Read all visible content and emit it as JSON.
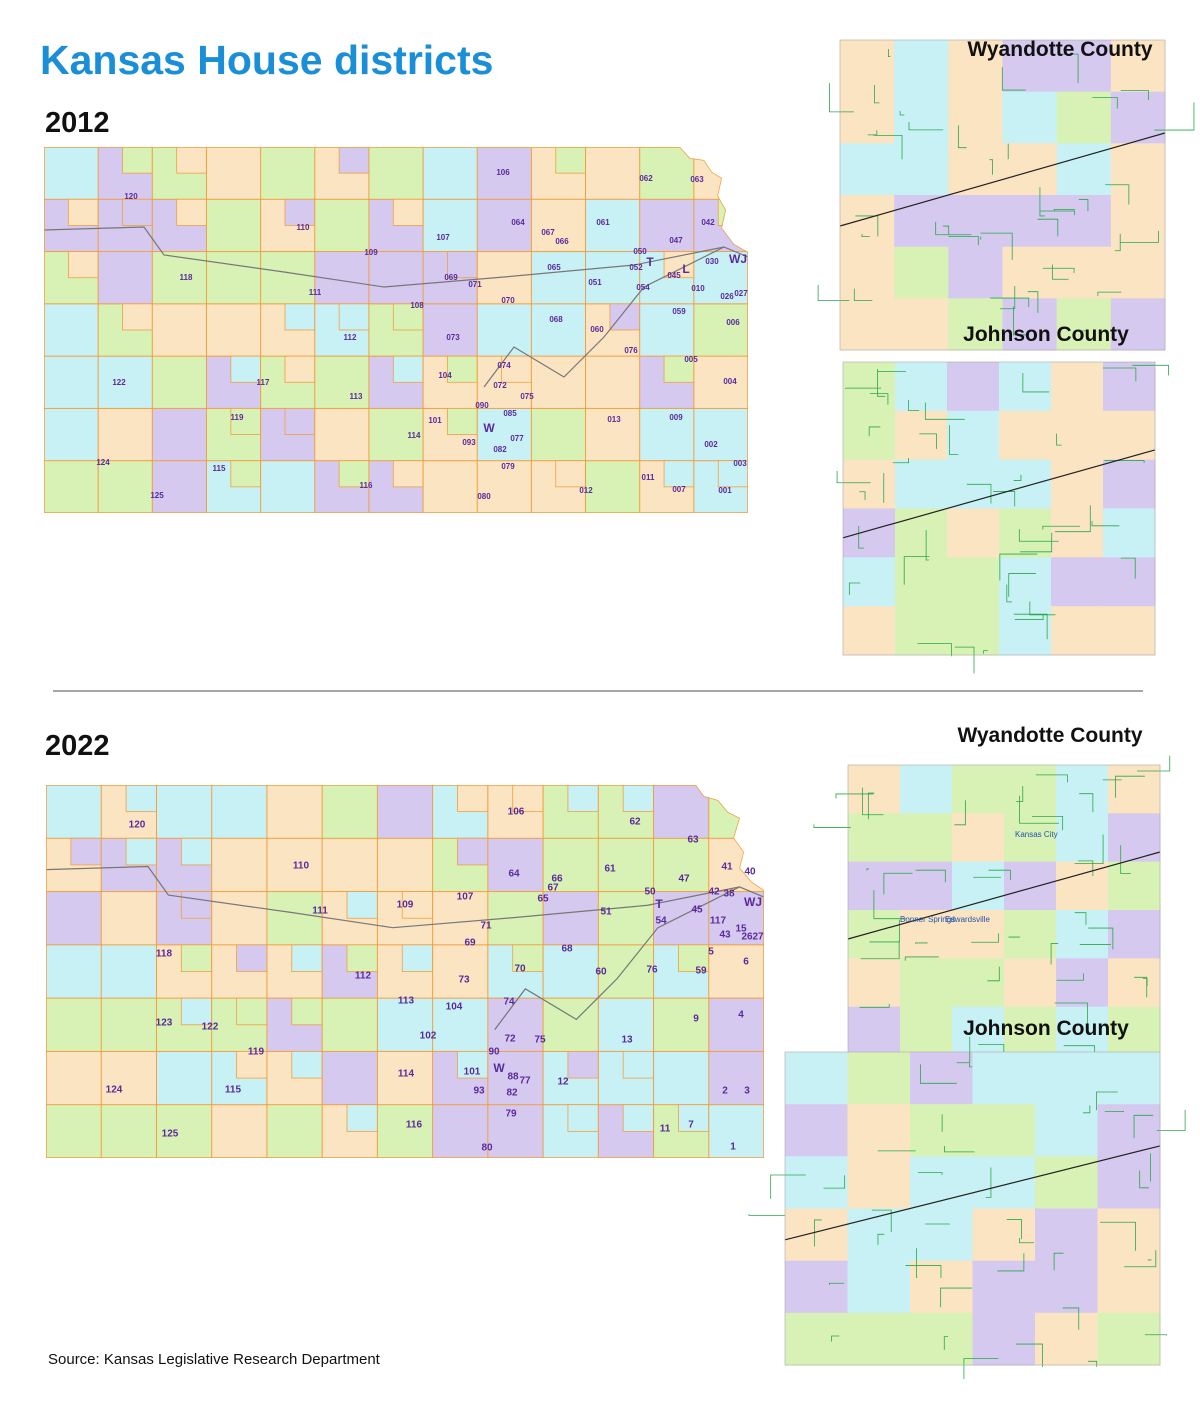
{
  "title": "Kansas House districts",
  "source": "Source: Kansas Legislative Research Department",
  "maps": [
    {
      "year": "2012",
      "districts": [
        "120",
        "110",
        "106",
        "062",
        "063",
        "042",
        "107",
        "064",
        "067",
        "066",
        "061",
        "047",
        "050",
        "109",
        "118",
        "111",
        "069",
        "071",
        "065",
        "052",
        "045",
        "030",
        "051",
        "054",
        "010",
        "026",
        "027",
        "070",
        "108",
        "068",
        "059",
        "006",
        "112",
        "073",
        "060",
        "076",
        "122",
        "117",
        "104",
        "074",
        "072",
        "005",
        "004",
        "113",
        "075",
        "090",
        "085",
        "119",
        "101",
        "013",
        "009",
        "W",
        "114",
        "093",
        "077",
        "082",
        "002",
        "124",
        "115",
        "079",
        "003",
        "116",
        "011",
        "012",
        "007",
        "001",
        "125",
        "080",
        "T",
        "L",
        "WJ"
      ],
      "insets": [
        {
          "title": "Wyandotte County",
          "places": []
        },
        {
          "title": "Johnson County",
          "places": []
        }
      ]
    },
    {
      "year": "2022",
      "districts": [
        "120",
        "106",
        "62",
        "63",
        "110",
        "61",
        "64",
        "66",
        "67",
        "47",
        "41",
        "40",
        "42",
        "38",
        "50",
        "107",
        "65",
        "109",
        "111",
        "WJ",
        "45",
        "T",
        "51",
        "54",
        "117",
        "71",
        "43",
        "15",
        "26",
        "27",
        "69",
        "118",
        "68",
        "5",
        "6",
        "70",
        "60",
        "76",
        "59",
        "112",
        "73",
        "74",
        "113",
        "104",
        "123",
        "122",
        "9",
        "4",
        "102",
        "72",
        "75",
        "13",
        "119",
        "90",
        "W",
        "88",
        "82",
        "101",
        "114",
        "77",
        "12",
        "124",
        "115",
        "93",
        "2",
        "3",
        "79",
        "116",
        "11",
        "7",
        "125",
        "80",
        "1"
      ],
      "insets": [
        {
          "title": "Wyandotte County",
          "places": [
            "Kansas City",
            "Bonner Springs",
            "Edwardsville"
          ]
        },
        {
          "title": "Johnson County",
          "places": []
        }
      ]
    }
  ]
}
